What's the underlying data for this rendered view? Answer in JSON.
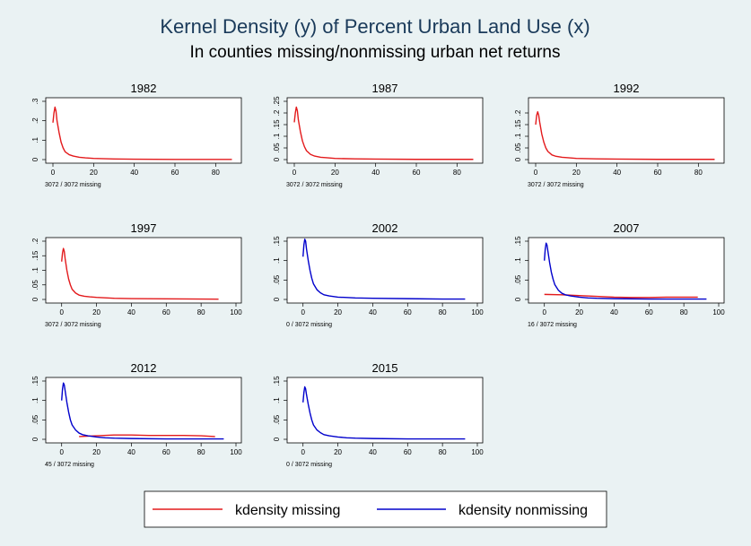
{
  "chart_data": {
    "type": "line",
    "title": "Kernel Density (y) of Percent Urban Land Use (x)",
    "subtitle": "In counties missing/nonmissing urban net returns",
    "legend": {
      "placement": "bottom",
      "entries": [
        {
          "label": "kdensity missing",
          "color": "#e31a1c"
        },
        {
          "label": "kdensity nonmissing",
          "color": "#0000cc"
        }
      ]
    },
    "colors": {
      "missing": "#e31a1c",
      "nonmissing": "#0000cc"
    },
    "panels": [
      {
        "title": "1982",
        "note": "3072 / 3072 missing",
        "xlim": [
          0,
          90
        ],
        "xticks": [
          "0",
          "20",
          "40",
          "60",
          "80"
        ],
        "ylim": [
          0,
          0.3
        ],
        "yticks": [
          "0",
          ".1",
          ".2",
          ".3"
        ],
        "series": [
          {
            "group": "missing",
            "x": [
              0,
              0.5,
              1,
              1.5,
              2,
              3,
              4,
              5,
              6,
              8,
              10,
              13,
              16,
              20,
              30,
              40,
              60,
              88
            ],
            "y": [
              0.19,
              0.24,
              0.27,
              0.25,
              0.2,
              0.14,
              0.09,
              0.06,
              0.04,
              0.025,
              0.018,
              0.012,
              0.009,
              0.006,
              0.003,
              0.002,
              0.001,
              0.001
            ]
          }
        ]
      },
      {
        "title": "1987",
        "note": "3072 / 3072 missing",
        "xlim": [
          0,
          90
        ],
        "xticks": [
          "0",
          "20",
          "40",
          "60",
          "80"
        ],
        "ylim": [
          0,
          0.25
        ],
        "yticks": [
          "0",
          ".05",
          ".1",
          ".15",
          ".2",
          ".25"
        ],
        "series": [
          {
            "group": "missing",
            "x": [
              0,
              0.5,
              1,
              1.5,
              2,
              3,
              4,
              5,
              6,
              8,
              10,
              13,
              16,
              20,
              30,
              40,
              60,
              88
            ],
            "y": [
              0.16,
              0.2,
              0.225,
              0.21,
              0.17,
              0.12,
              0.08,
              0.055,
              0.038,
              0.022,
              0.015,
              0.01,
              0.008,
              0.005,
              0.003,
              0.002,
              0.001,
              0.001
            ]
          }
        ]
      },
      {
        "title": "1992",
        "note": "3072 / 3072 missing",
        "xlim": [
          0,
          90
        ],
        "xticks": [
          "0",
          "20",
          "40",
          "60",
          "80"
        ],
        "ylim": [
          0,
          0.25
        ],
        "yticks": [
          "0",
          ".05",
          ".1",
          ".15",
          ".2"
        ],
        "series": [
          {
            "group": "missing",
            "x": [
              0,
              0.5,
              1,
              1.5,
              2,
              3,
              4,
              5,
              6,
              8,
              10,
              13,
              16,
              20,
              30,
              40,
              60,
              88
            ],
            "y": [
              0.15,
              0.19,
              0.205,
              0.19,
              0.16,
              0.11,
              0.075,
              0.05,
              0.035,
              0.02,
              0.014,
              0.01,
              0.008,
              0.005,
              0.003,
              0.002,
              0.001,
              0.001
            ]
          }
        ]
      },
      {
        "title": "1997",
        "note": "3072 / 3072 missing",
        "xlim": [
          -5,
          100
        ],
        "xticks": [
          "0",
          "20",
          "40",
          "60",
          "80",
          "100"
        ],
        "ylim": [
          0,
          0.2
        ],
        "yticks": [
          "0",
          ".05",
          ".1",
          ".15",
          ".2"
        ],
        "series": [
          {
            "group": "missing",
            "x": [
              0,
              0.5,
              1,
              1.5,
              2,
              3,
              4,
              5,
              6,
              8,
              10,
              13,
              16,
              20,
              30,
              40,
              60,
              90
            ],
            "y": [
              0.13,
              0.16,
              0.175,
              0.165,
              0.14,
              0.1,
              0.07,
              0.05,
              0.035,
              0.022,
              0.015,
              0.011,
              0.009,
              0.007,
              0.004,
              0.003,
              0.002,
              0.001
            ]
          }
        ]
      },
      {
        "title": "2002",
        "note": "0 / 3072 missing",
        "xlim": [
          -5,
          100
        ],
        "xticks": [
          "0",
          "20",
          "40",
          "60",
          "80",
          "100"
        ],
        "ylim": [
          0,
          0.15
        ],
        "yticks": [
          "0",
          ".05",
          ".1",
          ".15"
        ],
        "series": [
          {
            "group": "nonmissing",
            "x": [
              0,
              0.5,
              1,
              1.5,
              2,
              3,
              4,
              5,
              6,
              8,
              10,
              12,
              15,
              20,
              25,
              30,
              40,
              60,
              80,
              93
            ],
            "y": [
              0.11,
              0.14,
              0.155,
              0.15,
              0.13,
              0.1,
              0.075,
              0.055,
              0.04,
              0.025,
              0.017,
              0.012,
              0.009,
              0.006,
              0.005,
              0.004,
              0.003,
              0.002,
              0.001,
              0.001
            ]
          }
        ]
      },
      {
        "title": "2007",
        "note": "16 / 3072 missing",
        "xlim": [
          -5,
          100
        ],
        "xticks": [
          "0",
          "20",
          "40",
          "60",
          "80",
          "100"
        ],
        "ylim": [
          0,
          0.15
        ],
        "yticks": [
          "0",
          ".05",
          ".1",
          ".15"
        ],
        "series": [
          {
            "group": "missing",
            "x": [
              0,
              10,
              20,
              30,
              40,
              50,
              60,
              70,
              80,
              88
            ],
            "y": [
              0.013,
              0.012,
              0.01,
              0.008,
              0.006,
              0.005,
              0.005,
              0.006,
              0.006,
              0.006
            ]
          },
          {
            "group": "nonmissing",
            "x": [
              0,
              0.5,
              1,
              1.5,
              2,
              3,
              4,
              5,
              6,
              8,
              10,
              12,
              15,
              20,
              25,
              30,
              40,
              60,
              80,
              93
            ],
            "y": [
              0.1,
              0.13,
              0.145,
              0.14,
              0.125,
              0.095,
              0.07,
              0.052,
              0.038,
              0.024,
              0.016,
              0.012,
              0.009,
              0.006,
              0.004,
              0.003,
              0.002,
              0.001,
              0.001,
              0.001
            ]
          }
        ]
      },
      {
        "title": "2012",
        "note": "45 / 3072 missing",
        "xlim": [
          -5,
          100
        ],
        "xticks": [
          "0",
          "20",
          "40",
          "60",
          "80",
          "100"
        ],
        "ylim": [
          0,
          0.15
        ],
        "yticks": [
          "0",
          ".05",
          ".1",
          ".15"
        ],
        "series": [
          {
            "group": "missing",
            "x": [
              10,
              20,
              30,
              40,
              50,
              60,
              70,
              80,
              88
            ],
            "y": [
              0.007,
              0.009,
              0.011,
              0.011,
              0.01,
              0.01,
              0.01,
              0.009,
              0.007
            ]
          },
          {
            "group": "nonmissing",
            "x": [
              0,
              0.5,
              1,
              1.5,
              2,
              3,
              4,
              5,
              6,
              8,
              10,
              12,
              15,
              20,
              25,
              30,
              40,
              60,
              80,
              93
            ],
            "y": [
              0.1,
              0.13,
              0.145,
              0.14,
              0.125,
              0.095,
              0.07,
              0.05,
              0.037,
              0.024,
              0.016,
              0.012,
              0.009,
              0.006,
              0.004,
              0.003,
              0.002,
              0.001,
              0.001,
              0.001
            ]
          }
        ]
      },
      {
        "title": "2015",
        "note": "0 / 3072 missing",
        "xlim": [
          -5,
          100
        ],
        "xticks": [
          "0",
          "20",
          "40",
          "60",
          "80",
          "100"
        ],
        "ylim": [
          0,
          0.15
        ],
        "yticks": [
          "0",
          ".05",
          ".1",
          ".15"
        ],
        "series": [
          {
            "group": "nonmissing",
            "x": [
              0,
              0.5,
              1,
              1.5,
              2,
              3,
              4,
              5,
              6,
              8,
              10,
              12,
              15,
              20,
              25,
              30,
              40,
              60,
              80,
              93
            ],
            "y": [
              0.095,
              0.12,
              0.135,
              0.13,
              0.115,
              0.09,
              0.068,
              0.05,
              0.037,
              0.024,
              0.017,
              0.012,
              0.009,
              0.006,
              0.004,
              0.003,
              0.002,
              0.001,
              0.001,
              0.001
            ]
          }
        ]
      }
    ]
  }
}
